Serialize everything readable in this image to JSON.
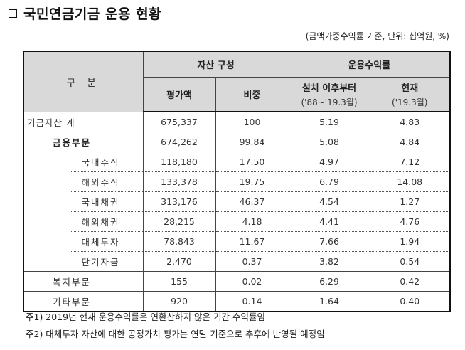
{
  "title": "국민연금기금 운용 현황",
  "title_icon": "checkbox-square",
  "unit_note": "(금액가중수익률 기준, 단위: 십억원, %)",
  "table": {
    "headers": {
      "category": "구 분",
      "asset_composition": "자산 구성",
      "return_rate": "운용수익률",
      "valuation": "평가액",
      "weight": "비중",
      "since_inception": "설치 이후부터",
      "since_inception_period": "('88~'19.3월)",
      "current": "현재",
      "current_period": "('19.3월)"
    },
    "rows": [
      {
        "label": "기금자산 계",
        "level": 0,
        "valuation": "675,337",
        "weight": "100",
        "since_inception": "5.19",
        "current": "4.83"
      },
      {
        "label": "금융부문",
        "level": 1,
        "valuation": "674,262",
        "weight": "99.84",
        "since_inception": "5.08",
        "current": "4.84"
      },
      {
        "label": "국내주식",
        "level": 2,
        "valuation": "118,180",
        "weight": "17.50",
        "since_inception": "4.97",
        "current": "7.12"
      },
      {
        "label": "해외주식",
        "level": 2,
        "valuation": "133,378",
        "weight": "19.75",
        "since_inception": "6.79",
        "current": "14.08"
      },
      {
        "label": "국내채권",
        "level": 2,
        "valuation": "313,176",
        "weight": "46.37",
        "since_inception": "4.54",
        "current": "1.27"
      },
      {
        "label": "해외채권",
        "level": 2,
        "valuation": "28,215",
        "weight": "4.18",
        "since_inception": "4.41",
        "current": "4.76"
      },
      {
        "label": "대체투자",
        "level": 2,
        "valuation": "78,843",
        "weight": "11.67",
        "since_inception": "7.66",
        "current": "1.94"
      },
      {
        "label": "단기자금",
        "level": 2,
        "valuation": "2,470",
        "weight": "0.37",
        "since_inception": "3.82",
        "current": "0.54"
      },
      {
        "label": "복지부문",
        "level": 1,
        "valuation": "155",
        "weight": "0.02",
        "since_inception": "6.29",
        "current": "0.42"
      },
      {
        "label": "기타부문",
        "level": 1,
        "valuation": "920",
        "weight": "0.14",
        "since_inception": "1.64",
        "current": "0.40"
      }
    ]
  },
  "footnotes": [
    "주1) 2019년 현재 운용수익률은 연환산하지 않은 기간 수익률임",
    "주2) 대체투자 자산에 대한 공정가치 평가는 연말 기준으로 추후에 반영될 예정임"
  ]
}
